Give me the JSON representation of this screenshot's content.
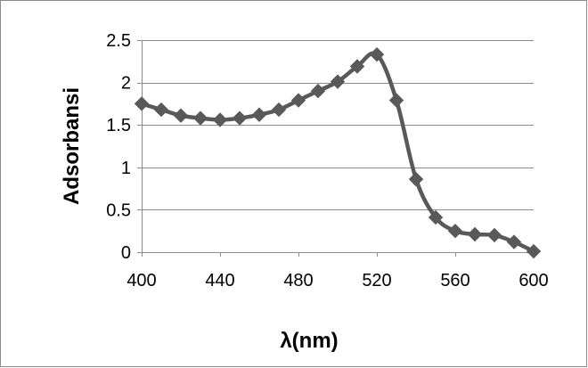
{
  "chart_data": {
    "type": "line",
    "title": "",
    "xlabel": "λ(nm)",
    "ylabel": "Adsorbansi",
    "xlim": [
      400,
      600
    ],
    "ylim": [
      0,
      2.5
    ],
    "x_ticks": [
      400,
      440,
      480,
      520,
      560,
      600
    ],
    "y_ticks": [
      0,
      0.5,
      1,
      1.5,
      2,
      2.5
    ],
    "x_tick_labels": [
      "400",
      "440",
      "480",
      "520",
      "560",
      "600"
    ],
    "y_tick_labels": [
      "0",
      "0.5",
      "1",
      "1.5",
      "2",
      "2.5"
    ],
    "grid": "horizontal",
    "legend": "none",
    "marker": "diamond",
    "smooth": true,
    "series": [
      {
        "color": "#595959",
        "x": [
          400,
          410,
          420,
          430,
          440,
          450,
          460,
          470,
          480,
          490,
          500,
          510,
          520,
          530,
          540,
          550,
          560,
          570,
          580,
          590,
          600
        ],
        "y": [
          1.75,
          1.68,
          1.61,
          1.58,
          1.56,
          1.58,
          1.62,
          1.68,
          1.79,
          1.9,
          2.01,
          2.19,
          2.33,
          1.79,
          0.86,
          0.41,
          0.25,
          0.21,
          0.2,
          0.12,
          0.01
        ]
      }
    ]
  }
}
